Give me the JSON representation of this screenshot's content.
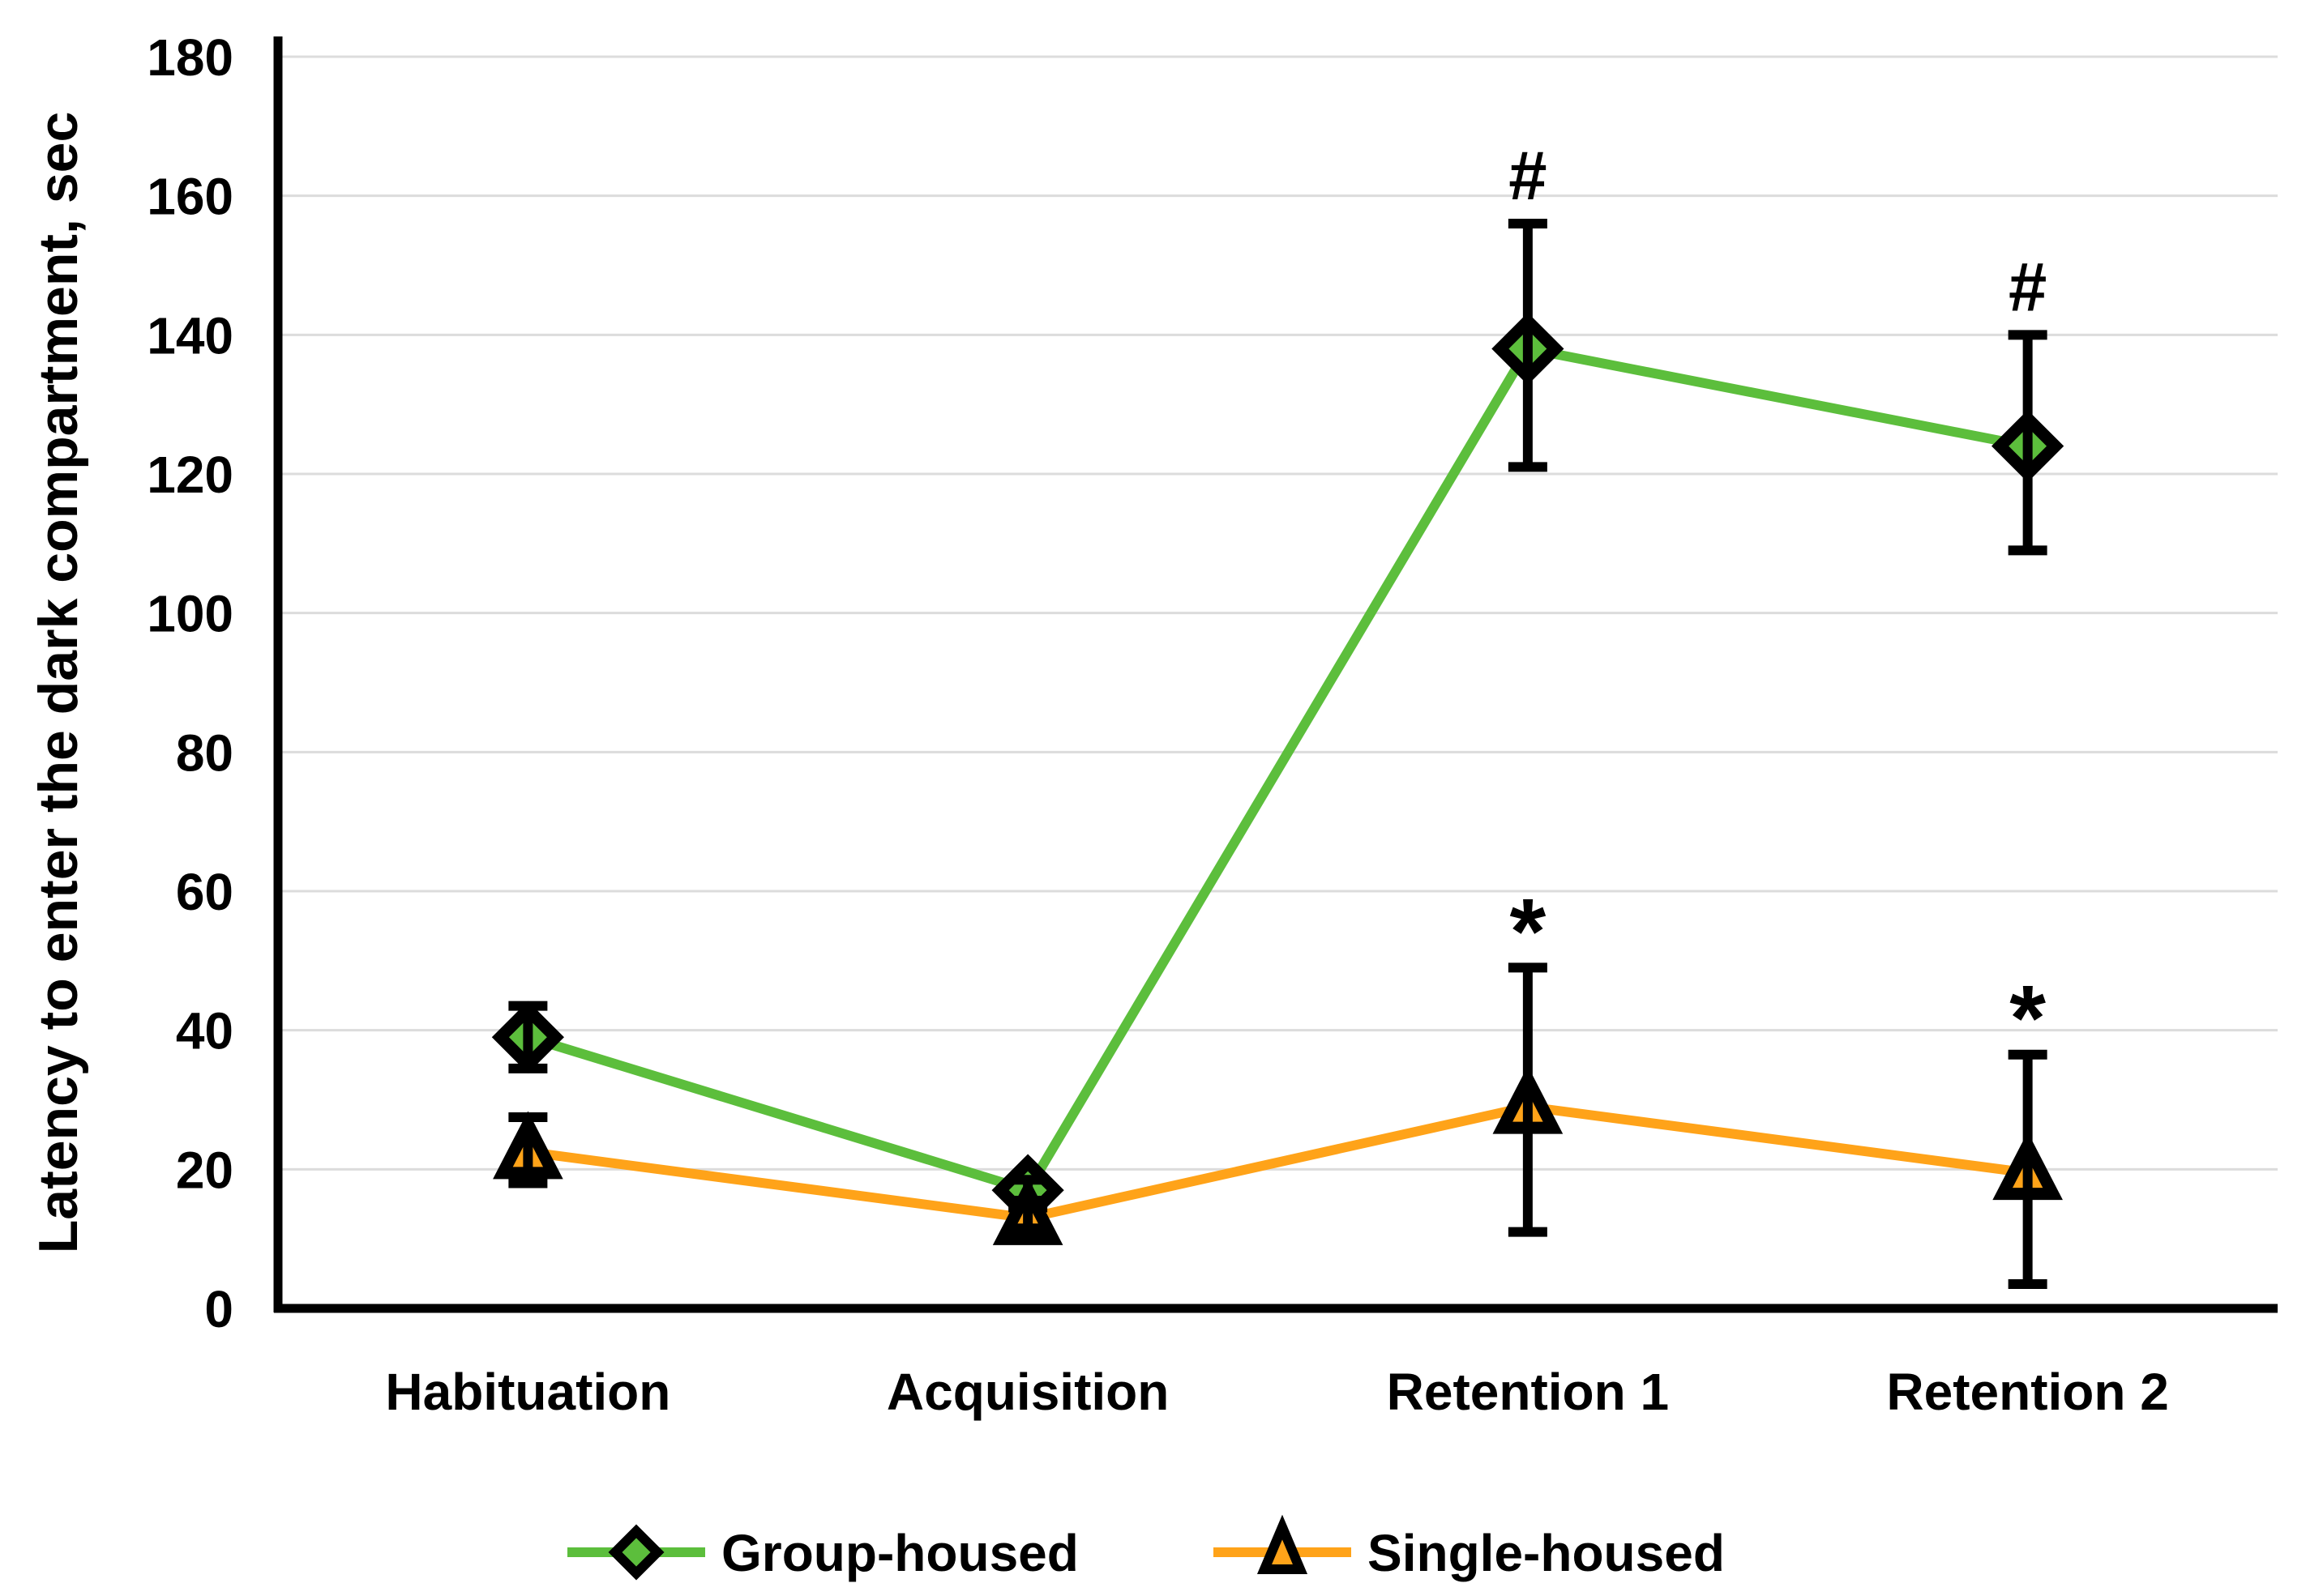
{
  "chart_data": {
    "type": "line",
    "title": "",
    "xlabel": "",
    "ylabel": "Latency to enter the dark compartment, sec",
    "categories": [
      "Habituation",
      "Acquisition",
      "Retention 1",
      "Retention 2"
    ],
    "y_axis": {
      "min": 0,
      "max": 180,
      "tick_step": 20
    },
    "y_tick_labels": [
      "0",
      "20",
      "40",
      "60",
      "80",
      "100",
      "120",
      "140",
      "160",
      "180"
    ],
    "grid": true,
    "legend_position": "bottom",
    "series": [
      {
        "name": "Group-housed",
        "marker": "diamond",
        "color": "#5CBE3C",
        "values": [
          39,
          17,
          138,
          124
        ],
        "error_up": [
          4.5,
          1.5,
          18,
          16
        ],
        "error_down": [
          4.5,
          1.5,
          17,
          15
        ],
        "annotations": [
          "",
          "",
          "#",
          "#"
        ]
      },
      {
        "name": "Single-housed",
        "marker": "triangle",
        "color": "#FFA319",
        "values": [
          22.5,
          13,
          29,
          19.5
        ],
        "error_up": [
          5,
          1.5,
          20,
          17
        ],
        "error_down": [
          4.5,
          1.5,
          18,
          16
        ],
        "annotations": [
          "",
          "",
          "*",
          "*"
        ]
      }
    ],
    "colors": {
      "grid": "#DCDCDC",
      "axis": "#000000",
      "text": "#000000",
      "error_bar": "#000000",
      "marker_outline": "#000000",
      "background": "#FFFFFF"
    }
  }
}
